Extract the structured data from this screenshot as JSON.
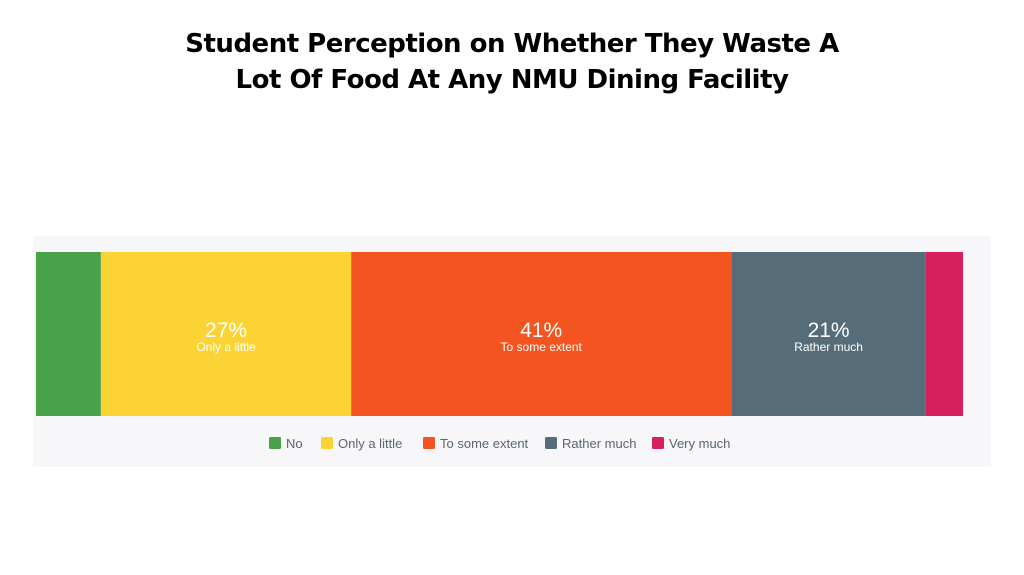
{
  "slide": {
    "title_line1": "Student Perception on Whether They Waste A",
    "title_line2": "Lot Of Food At Any NMU Dining Facility"
  },
  "chart_data": {
    "type": "bar",
    "orientation": "horizontal-stacked-100",
    "title": "Student Perception on Whether They Waste A Lot Of Food At Any NMU Dining Facility",
    "categories": [
      "No",
      "Only a little",
      "To some extent",
      "Rather much",
      "Very much"
    ],
    "values": [
      7,
      27,
      41,
      21,
      4
    ],
    "unit": "%",
    "data_labels": [
      {
        "category": "No",
        "value": "",
        "label": ""
      },
      {
        "category": "Only a little",
        "value": "27%",
        "label": "Only a little"
      },
      {
        "category": "To some extent",
        "value": "41%",
        "label": "To some extent"
      },
      {
        "category": "Rather much",
        "value": "21%",
        "label": "Rather much"
      },
      {
        "category": "Very much",
        "value": "",
        "label": ""
      }
    ],
    "colors": [
      "#47a24a",
      "#fbd334",
      "#f4541f",
      "#566c78",
      "#d81f5e"
    ],
    "legend": {
      "position": "bottom",
      "entries": [
        "No",
        "Only a little",
        "To some extent",
        "Rather much",
        "Very much"
      ]
    },
    "grid": false
  }
}
